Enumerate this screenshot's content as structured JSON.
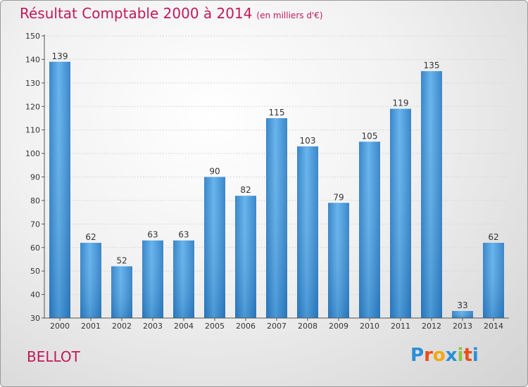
{
  "title": "Résultat Comptable 2000 à 2014",
  "subtitle": "(en milliers d'€)",
  "commune": "BELLOT",
  "logo": {
    "text": "Proxiti",
    "letters": [
      "P",
      "r",
      "o",
      "x",
      "i",
      "t",
      "i"
    ],
    "colors": [
      "#2a8fd6",
      "#e94e1b",
      "#f3a712",
      "#2a8fd6",
      "#8cc63f",
      "#e94e1b",
      "#2a8fd6"
    ]
  },
  "chart_data": {
    "type": "bar",
    "title": "Résultat Comptable 2000 à 2014",
    "ylabel": "en milliers d'€",
    "xlabel": "",
    "ylim": [
      30,
      150
    ],
    "yticks": [
      30,
      40,
      50,
      60,
      70,
      80,
      90,
      100,
      110,
      120,
      130,
      140,
      150
    ],
    "categories": [
      "2000",
      "2001",
      "2002",
      "2003",
      "2004",
      "2005",
      "2006",
      "2007",
      "2008",
      "2009",
      "2010",
      "2011",
      "2012",
      "2013",
      "2014"
    ],
    "values": [
      139,
      62,
      52,
      63,
      63,
      90,
      82,
      115,
      103,
      79,
      105,
      119,
      135,
      33,
      62
    ],
    "grid": true,
    "bar_color": "#3c8fd6"
  }
}
